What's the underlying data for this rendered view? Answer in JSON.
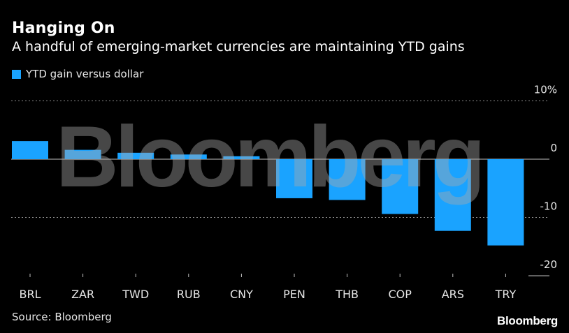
{
  "header": {
    "title": "Hanging On",
    "subtitle": "A handful of emerging-market currencies are maintaining YTD gains"
  },
  "footer": {
    "source": "Source: Bloomberg",
    "logo": "Bloomberg"
  },
  "watermark": "Bloomberg",
  "colors": {
    "background": "#000000",
    "bar": "#1aa3ff",
    "gridline": "#8c8c8c",
    "zero_line": "#bfbfbf"
  },
  "chart_data": {
    "type": "bar",
    "categories": [
      "BRL",
      "ZAR",
      "TWD",
      "RUB",
      "CNY",
      "PEN",
      "THB",
      "COP",
      "ARS",
      "TRY"
    ],
    "series": [
      {
        "name": "YTD gain versus dollar",
        "values": [
          3.1,
          1.6,
          1.1,
          0.8,
          0.5,
          -6.7,
          -7.0,
          -9.4,
          -12.3,
          -14.8
        ]
      }
    ],
    "y_ticks": [
      "10%",
      "0",
      "-10",
      "-20"
    ],
    "y_tick_values": [
      10,
      0,
      -10,
      -20
    ],
    "ylim": [
      -20,
      10
    ],
    "grid": true,
    "legend_position": "top-left"
  }
}
